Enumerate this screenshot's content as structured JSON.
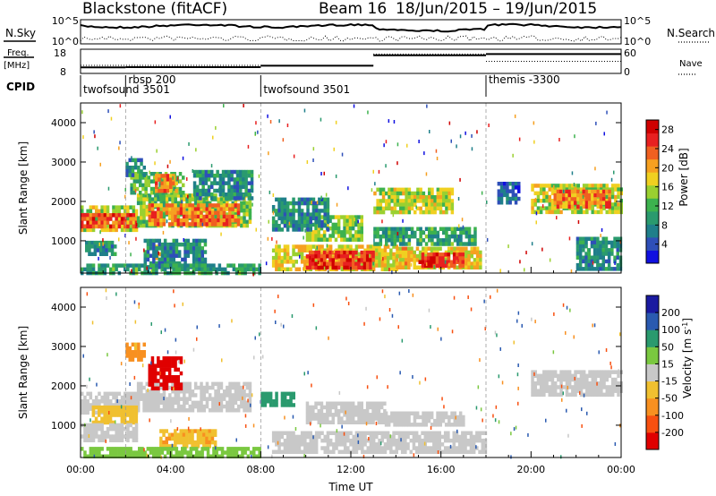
{
  "chart_data": [
    {
      "panel": "header",
      "type": "line",
      "title": "Blackstone (fitACF)",
      "beam_label": "Beam 16",
      "date_range": "18/Jun/2015 – 19/Jun/2015",
      "labels": {
        "nsky": "N.Sky",
        "nsearch": "N.Search",
        "freq_top": "Freq.",
        "freq_unit": "[MHz]",
        "nave": "Nave",
        "cpid": "CPID"
      },
      "ticks": {
        "noise_left": [
          "10^5",
          "10^0"
        ],
        "noise_right": [
          "10^5",
          "10^0"
        ],
        "freq_left": [
          "18",
          "8"
        ],
        "nave_right": [
          "60",
          "0"
        ]
      },
      "cpid_segments": [
        {
          "label": "twofsound 3501",
          "start": 0.0,
          "end": 2.0
        },
        {
          "label": "rbsp 200",
          "start": 2.0,
          "end": 8.0
        },
        {
          "label": "twofsound 3501",
          "start": 8.0,
          "end": 18.0
        },
        {
          "label": "themis -3300",
          "start": 18.0,
          "end": 24.0
        }
      ],
      "freq_mhz": [
        {
          "start": 0.0,
          "end": 2.0,
          "value": 10.5
        },
        {
          "start": 2.0,
          "end": 8.0,
          "value": 10.6
        },
        {
          "start": 8.0,
          "end": 13.0,
          "value": 11.2
        },
        {
          "start": 13.0,
          "end": 18.0,
          "value": 15.5
        },
        {
          "start": 18.0,
          "end": 24.0,
          "value": 16.0
        }
      ],
      "nave": [
        {
          "start": 0.0,
          "end": 13.0,
          "value": 20
        },
        {
          "start": 13.0,
          "end": 18.0,
          "value": 48
        },
        {
          "start": 18.0,
          "end": 24.0,
          "value": 30
        }
      ]
    },
    {
      "panel": "power",
      "type": "heatmap",
      "xlabel": "",
      "ylabel": "Slant Range [km]",
      "colorbar_label": "Power [dB]",
      "xlim": [
        0,
        24
      ],
      "ylim": [
        180,
        4500
      ],
      "yticks": [
        1000,
        2000,
        3000,
        4000
      ],
      "colorbar_ticks": [
        4,
        8,
        12,
        16,
        20,
        24,
        28
      ],
      "clim": [
        0,
        30
      ],
      "bands": [
        {
          "x0": 0.0,
          "x1": 2.5,
          "y0": 1250,
          "y1": 1900,
          "v": 16
        },
        {
          "x0": 0.0,
          "x1": 2.5,
          "y0": 1380,
          "y1": 1700,
          "v": 24
        },
        {
          "x0": 2.5,
          "x1": 7.5,
          "y0": 1350,
          "y1": 2200,
          "v": 14
        },
        {
          "x0": 3.0,
          "x1": 7.0,
          "y0": 1450,
          "y1": 1950,
          "v": 22
        },
        {
          "x0": 2.2,
          "x1": 4.5,
          "y0": 2200,
          "y1": 2750,
          "v": 12
        },
        {
          "x0": 3.3,
          "x1": 4.2,
          "y0": 2300,
          "y1": 2700,
          "v": 22
        },
        {
          "x0": 2.0,
          "x1": 2.8,
          "y0": 2700,
          "y1": 3100,
          "v": 8
        },
        {
          "x0": 5.0,
          "x1": 7.6,
          "y0": 2100,
          "y1": 2800,
          "v": 8
        },
        {
          "x0": 0.2,
          "x1": 1.5,
          "y0": 700,
          "y1": 1000,
          "v": 8
        },
        {
          "x0": 3.2,
          "x1": 3.9,
          "y0": 500,
          "y1": 900,
          "v": 20
        },
        {
          "x0": 2.8,
          "x1": 5.5,
          "y0": 300,
          "y1": 1050,
          "v": 8
        },
        {
          "x0": 0.0,
          "x1": 8.0,
          "y0": 200,
          "y1": 420,
          "v": 10
        },
        {
          "x0": 8.5,
          "x1": 14.0,
          "y0": 300,
          "y1": 900,
          "v": 18
        },
        {
          "x0": 10.0,
          "x1": 13.0,
          "y0": 320,
          "y1": 750,
          "v": 26
        },
        {
          "x0": 14.0,
          "x1": 17.8,
          "y0": 300,
          "y1": 850,
          "v": 18
        },
        {
          "x0": 15.0,
          "x1": 17.0,
          "y0": 350,
          "y1": 700,
          "v": 26
        },
        {
          "x0": 13.0,
          "x1": 17.5,
          "y0": 900,
          "y1": 1350,
          "v": 10
        },
        {
          "x0": 10.0,
          "x1": 12.5,
          "y0": 1050,
          "y1": 1650,
          "v": 14
        },
        {
          "x0": 13.0,
          "x1": 16.5,
          "y0": 1750,
          "y1": 2350,
          "v": 16
        },
        {
          "x0": 8.5,
          "x1": 11.0,
          "y0": 1300,
          "y1": 2100,
          "v": 8
        },
        {
          "x0": 20.0,
          "x1": 24.0,
          "y0": 1750,
          "y1": 2450,
          "v": 16
        },
        {
          "x0": 21.0,
          "x1": 23.5,
          "y0": 1900,
          "y1": 2300,
          "v": 22
        },
        {
          "x0": 18.5,
          "x1": 19.5,
          "y0": 2000,
          "y1": 2500,
          "v": 6
        },
        {
          "x0": 22.0,
          "x1": 24.0,
          "y0": 300,
          "y1": 1100,
          "v": 8
        }
      ]
    },
    {
      "panel": "velocity",
      "type": "heatmap",
      "xlabel": "Time UT",
      "ylabel": "Slant Range [km]",
      "colorbar_label": "Velocity [m s^-1]",
      "xlim": [
        0,
        24
      ],
      "ylim": [
        180,
        4500
      ],
      "yticks": [
        1000,
        2000,
        3000,
        4000
      ],
      "xticks": [
        "00:00",
        "04:00",
        "08:00",
        "12:00",
        "16:00",
        "20:00",
        "00:00"
      ],
      "colorbar_ticks": [
        200,
        100,
        50,
        15,
        -15,
        -50,
        -100,
        -200
      ],
      "bands": [
        {
          "x0": 0.0,
          "x1": 2.5,
          "y0": 1300,
          "y1": 1850,
          "v": 0
        },
        {
          "x0": 2.5,
          "x1": 7.5,
          "y0": 1400,
          "y1": 2100,
          "v": 0
        },
        {
          "x0": 3.0,
          "x1": 4.5,
          "y0": 1950,
          "y1": 2750,
          "v": -250
        },
        {
          "x0": 2.0,
          "x1": 2.8,
          "y0": 2700,
          "y1": 3100,
          "v": -60
        },
        {
          "x0": 0.5,
          "x1": 2.5,
          "y0": 1050,
          "y1": 1500,
          "v": -30
        },
        {
          "x0": 8.0,
          "x1": 9.5,
          "y0": 1500,
          "y1": 1850,
          "v": 70
        },
        {
          "x0": 8.5,
          "x1": 18.0,
          "y0": 300,
          "y1": 850,
          "v": 0
        },
        {
          "x0": 10.0,
          "x1": 13.5,
          "y0": 1100,
          "y1": 1600,
          "v": 0
        },
        {
          "x0": 13.5,
          "x1": 17.0,
          "y0": 1050,
          "y1": 1350,
          "v": 0
        },
        {
          "x0": 20.0,
          "x1": 24.0,
          "y0": 1800,
          "y1": 2400,
          "v": 0
        },
        {
          "x0": 3.5,
          "x1": 6.0,
          "y0": 500,
          "y1": 900,
          "v": -40
        },
        {
          "x0": 0.0,
          "x1": 8.0,
          "y0": 200,
          "y1": 450,
          "v": 30
        },
        {
          "x0": 0.0,
          "x1": 2.5,
          "y0": 600,
          "y1": 1050,
          "v": 0
        }
      ]
    }
  ],
  "colors": {
    "power": [
      "#1010e0",
      "#2e4fb8",
      "#1f7f8a",
      "#2a9a6e",
      "#3db24e",
      "#9ad030",
      "#f0d020",
      "#f6a020",
      "#f06020",
      "#e82020",
      "#d00000"
    ],
    "velocity": [
      "#e00000",
      "#f85010",
      "#f89020",
      "#f0c030",
      "#c8c8c8",
      "#7ac840",
      "#2a9a6e",
      "#2a5ab0",
      "#1a1aa0"
    ]
  }
}
